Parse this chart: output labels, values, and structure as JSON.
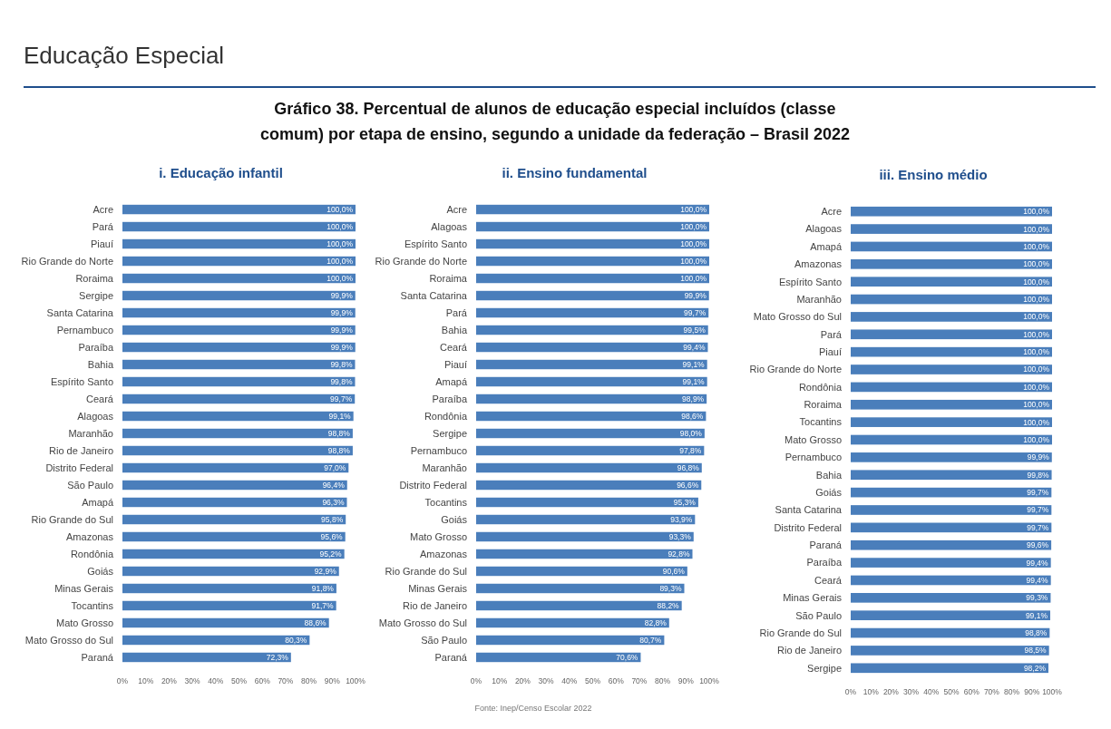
{
  "chart_data": [
    {
      "type": "bar",
      "orientation": "horizontal",
      "title": "i. Educação infantil",
      "annotations": [
        "Educação Especial",
        "Gráfico 38. Percentual de alunos de educação especial incluídos (classe comum) por etapa de ensino, segundo a unidade da federação – Brasil 2022",
        "Fonte: Inep/Censo Escolar 2022"
      ],
      "color": "#4a7ebb",
      "categories": [
        "Acre",
        "Pará",
        "Piauí",
        "Rio Grande do Norte",
        "Roraima",
        "Sergipe",
        "Santa Catarina",
        "Pernambuco",
        "Paraíba",
        "Bahia",
        "Espírito Santo",
        "Ceará",
        "Alagoas",
        "Maranhão",
        "Rio de Janeiro",
        "Distrito Federal",
        "São Paulo",
        "Amapá",
        "Rio Grande do Sul",
        "Amazonas",
        "Rondônia",
        "Goiás",
        "Minas Gerais",
        "Tocantins",
        "Mato Grosso",
        "Mato Grosso do Sul",
        "Paraná"
      ],
      "values": [
        100,
        100,
        100,
        100,
        100,
        99.9,
        99.9,
        99.9,
        99.9,
        99.8,
        99.8,
        99.7,
        99.1,
        98.8,
        98.8,
        97.0,
        96.4,
        96.3,
        95.8,
        95.6,
        95.2,
        92.9,
        91.8,
        91.7,
        88.6,
        80.3,
        72.3
      ],
      "value_labels": [
        "100,0%",
        "100,0%",
        "100,0%",
        "100,0%",
        "100,0%",
        "99,9%",
        "99,9%",
        "99,9%",
        "99,9%",
        "99,8%",
        "99,8%",
        "99,7%",
        "99,1%",
        "98,8%",
        "98,8%",
        "97,0%",
        "96,4%",
        "96,3%",
        "95,8%",
        "95,6%",
        "95,2%",
        "92,9%",
        "91,8%",
        "91,7%",
        "88,6%",
        "80,3%",
        "72,3%"
      ],
      "xlim": [
        0,
        100
      ],
      "xticks": [
        {
          "value": 0,
          "label": "0%"
        },
        {
          "value": 10,
          "label": "10%"
        },
        {
          "value": 20,
          "label": "20%"
        },
        {
          "value": 30,
          "label": "30%"
        },
        {
          "value": 40,
          "label": "40%"
        },
        {
          "value": 50,
          "label": "50%"
        },
        {
          "value": 60,
          "label": "60%"
        },
        {
          "value": 70,
          "label": "70%"
        },
        {
          "value": 80,
          "label": "80%"
        },
        {
          "value": 90,
          "label": "90%"
        },
        {
          "value": 100,
          "label": "100%"
        }
      ]
    },
    {
      "type": "bar",
      "orientation": "horizontal",
      "title": "ii. Ensino fundamental",
      "color": "#4a7ebb",
      "categories": [
        "Acre",
        "Alagoas",
        "Espírito Santo",
        "Rio Grande do Norte",
        "Roraima",
        "Santa Catarina",
        "Pará",
        "Bahia",
        "Ceará",
        "Piauí",
        "Amapá",
        "Paraíba",
        "Rondônia",
        "Sergipe",
        "Pernambuco",
        "Maranhão",
        "Distrito Federal",
        "Tocantins",
        "Goiás",
        "Mato Grosso",
        "Amazonas",
        "Rio Grande do Sul",
        "Minas Gerais",
        "Rio de Janeiro",
        "Mato Grosso do Sul",
        "São Paulo",
        "Paraná"
      ],
      "values": [
        100,
        100,
        100,
        100,
        100,
        99.9,
        99.7,
        99.5,
        99.4,
        99.1,
        99.1,
        98.9,
        98.6,
        98.0,
        97.8,
        96.8,
        96.6,
        95.3,
        93.9,
        93.3,
        92.8,
        90.6,
        89.3,
        88.2,
        82.8,
        80.7,
        70.6
      ],
      "value_labels": [
        "100,0%",
        "100,0%",
        "100,0%",
        "100,0%",
        "100,0%",
        "99,9%",
        "99,7%",
        "99,5%",
        "99,4%",
        "99,1%",
        "99,1%",
        "98,9%",
        "98,6%",
        "98,0%",
        "97,8%",
        "96,8%",
        "96,6%",
        "95,3%",
        "93,9%",
        "93,3%",
        "92,8%",
        "90,6%",
        "89,3%",
        "88,2%",
        "82,8%",
        "80,7%",
        "70,6%"
      ],
      "xlim": [
        0,
        100
      ],
      "xticks": [
        {
          "value": 0,
          "label": "0%"
        },
        {
          "value": 10,
          "label": "10%"
        },
        {
          "value": 20,
          "label": "20%"
        },
        {
          "value": 30,
          "label": "30%"
        },
        {
          "value": 40,
          "label": "40%"
        },
        {
          "value": 50,
          "label": "50%"
        },
        {
          "value": 60,
          "label": "60%"
        },
        {
          "value": 70,
          "label": "70%"
        },
        {
          "value": 80,
          "label": "80%"
        },
        {
          "value": 90,
          "label": "90%"
        },
        {
          "value": 100,
          "label": "100%"
        }
      ]
    },
    {
      "type": "bar",
      "orientation": "horizontal",
      "title": "iii. Ensino médio",
      "color": "#4a7ebb",
      "categories": [
        "Acre",
        "Alagoas",
        "Amapá",
        "Amazonas",
        "Espírito Santo",
        "Maranhão",
        "Mato Grosso do Sul",
        "Pará",
        "Piauí",
        "Rio Grande do Norte",
        "Rondônia",
        "Roraima",
        "Tocantins",
        "Mato Grosso",
        "Pernambuco",
        "Bahia",
        "Goiás",
        "Santa Catarina",
        "Distrito Federal",
        "Paraná",
        "Paraíba",
        "Ceará",
        "Minas Gerais",
        "São Paulo",
        "Rio Grande do Sul",
        "Rio de Janeiro",
        "Sergipe"
      ],
      "values": [
        100,
        100,
        100,
        100,
        100,
        100,
        100,
        100,
        100,
        100,
        100,
        100,
        100,
        100,
        99.9,
        99.8,
        99.7,
        99.7,
        99.7,
        99.6,
        99.4,
        99.4,
        99.3,
        99.1,
        98.8,
        98.5,
        98.2
      ],
      "value_labels": [
        "100,0%",
        "100,0%",
        "100,0%",
        "100,0%",
        "100,0%",
        "100,0%",
        "100,0%",
        "100,0%",
        "100,0%",
        "100,0%",
        "100,0%",
        "100,0%",
        "100,0%",
        "100,0%",
        "99,9%",
        "99,8%",
        "99,7%",
        "99,7%",
        "99,7%",
        "99,6%",
        "99,4%",
        "99,4%",
        "99,3%",
        "99,1%",
        "98,8%",
        "98,5%",
        "98,2%"
      ],
      "xlim": [
        0,
        100
      ],
      "xticks": [
        {
          "value": 0,
          "label": "0%"
        },
        {
          "value": 10,
          "label": "10%"
        },
        {
          "value": 20,
          "label": "20%"
        },
        {
          "value": 30,
          "label": "30%"
        },
        {
          "value": 40,
          "label": "40%"
        },
        {
          "value": 50,
          "label": "50%"
        },
        {
          "value": 60,
          "label": "60%"
        },
        {
          "value": 70,
          "label": "70%"
        },
        {
          "value": 80,
          "label": "80%"
        },
        {
          "value": 90,
          "label": "90%"
        },
        {
          "value": 100,
          "label": "100%"
        }
      ]
    }
  ]
}
